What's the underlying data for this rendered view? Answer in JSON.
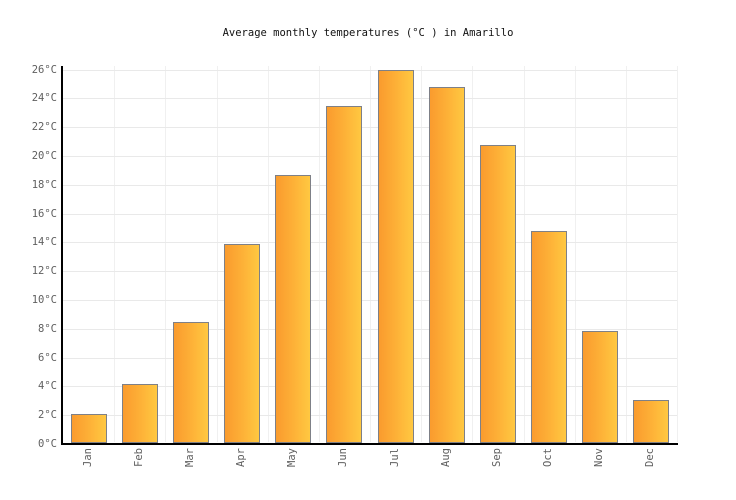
{
  "chart_data": {
    "type": "bar",
    "title": "Average monthly temperatures (°C ) in Amarillo",
    "categories": [
      "Jan",
      "Feb",
      "Mar",
      "Apr",
      "May",
      "Jun",
      "Jul",
      "Aug",
      "Sep",
      "Oct",
      "Nov",
      "Dec"
    ],
    "values": [
      2.0,
      4.1,
      8.4,
      13.8,
      18.6,
      23.4,
      25.9,
      24.7,
      20.7,
      14.7,
      7.8,
      3.0
    ],
    "unit": "°C",
    "xlabel": "",
    "ylabel": "",
    "ylim": [
      0,
      26.25
    ],
    "y_tick_step": 2,
    "y_tick_labels": [
      "0°C",
      "2°C",
      "4°C",
      "6°C",
      "8°C",
      "10°C",
      "12°C",
      "14°C",
      "16°C",
      "18°C",
      "20°C",
      "22°C",
      "24°C",
      "26°C"
    ],
    "grid": true,
    "legend": false,
    "x_label_rotation": -90,
    "colors": {
      "bar_gradient_left": "#FA9B2E",
      "bar_gradient_right": "#FFC841",
      "bar_border": "#7E8087",
      "axis": "#000000",
      "gridline_h": "#E9E9E9",
      "gridline_v": "#F0F0F0",
      "tick_label": "#5F5F5F",
      "title": "#111111",
      "background": "#FFFFFF"
    }
  }
}
